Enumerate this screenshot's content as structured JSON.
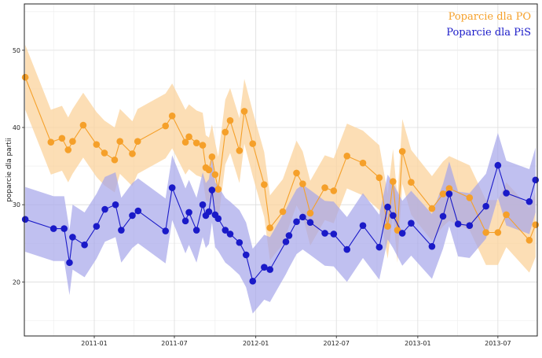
{
  "chart_data": {
    "type": "line",
    "title": "",
    "xlabel": "",
    "ylabel": "poparcie dla partii",
    "ylim": [
      13,
      56
    ],
    "xlim": [
      "2010-07-27",
      "2013-09-28"
    ],
    "y_ticks": [
      20,
      30,
      40,
      50
    ],
    "x_ticks": [
      "2011-01",
      "2011-07",
      "2012-01",
      "2012-07",
      "2013-01",
      "2013-07"
    ],
    "x_tick_dates": [
      "2011-01-01",
      "2011-07-01",
      "2012-01-01",
      "2012-07-01",
      "2013-01-01",
      "2013-07-01"
    ],
    "grid": true,
    "legend_position": "top-right",
    "bands": "shaded confidence band around each series",
    "series": [
      {
        "name": "Poparcie dla PO",
        "color": "#f5a02a",
        "band_color": "#fbd39c",
        "points": [
          [
            "2010-07-29",
            46.5
          ],
          [
            "2010-09-25",
            38.1
          ],
          [
            "2010-10-20",
            38.6
          ],
          [
            "2010-11-03",
            37.1
          ],
          [
            "2010-11-13",
            38.2
          ],
          [
            "2010-12-07",
            40.3
          ],
          [
            "2011-01-06",
            37.8
          ],
          [
            "2011-01-24",
            36.7
          ],
          [
            "2011-02-16",
            35.8
          ],
          [
            "2011-02-28",
            38.2
          ],
          [
            "2011-03-28",
            36.6
          ],
          [
            "2011-04-09",
            38.2
          ],
          [
            "2011-06-11",
            40.2
          ],
          [
            "2011-06-26",
            41.5
          ],
          [
            "2011-07-26",
            38.1
          ],
          [
            "2011-08-03",
            38.8
          ],
          [
            "2011-08-20",
            38.0
          ],
          [
            "2011-09-03",
            37.7
          ],
          [
            "2011-09-10",
            34.8
          ],
          [
            "2011-09-17",
            34.5
          ],
          [
            "2011-09-24",
            36.2
          ],
          [
            "2011-10-01",
            33.9
          ],
          [
            "2011-10-08",
            32.0
          ],
          [
            "2011-10-24",
            39.4
          ],
          [
            "2011-11-04",
            40.9
          ],
          [
            "2011-11-25",
            37.0
          ],
          [
            "2011-12-06",
            42.1
          ],
          [
            "2011-12-25",
            37.9
          ],
          [
            "2012-01-20",
            32.6
          ],
          [
            "2012-02-02",
            27.0
          ],
          [
            "2012-03-02",
            29.1
          ],
          [
            "2012-04-02",
            34.1
          ],
          [
            "2012-04-16",
            32.7
          ],
          [
            "2012-05-03",
            28.9
          ],
          [
            "2012-06-05",
            32.2
          ],
          [
            "2012-06-25",
            31.8
          ],
          [
            "2012-07-25",
            36.3
          ],
          [
            "2012-08-30",
            35.4
          ],
          [
            "2012-10-06",
            33.5
          ],
          [
            "2012-10-25",
            27.2
          ],
          [
            "2012-11-16",
            26.7
          ],
          [
            "2012-11-06",
            33.0
          ],
          [
            "2012-11-27",
            36.9
          ],
          [
            "2012-12-17",
            32.9
          ],
          [
            "2013-02-02",
            29.5
          ],
          [
            "2013-02-27",
            31.4
          ],
          [
            "2013-03-13",
            32.1
          ],
          [
            "2013-04-28",
            30.9
          ],
          [
            "2013-06-04",
            26.4
          ],
          [
            "2013-07-01",
            26.4
          ],
          [
            "2013-07-20",
            28.7
          ],
          [
            "2013-09-10",
            25.4
          ],
          [
            "2013-09-24",
            27.4
          ]
        ]
      },
      {
        "name": "Poparcie dla PiS",
        "color": "#1a1ac8",
        "band_color": "#a5a5ea",
        "points": [
          [
            "2010-07-29",
            28.1
          ],
          [
            "2010-10-01",
            26.9
          ],
          [
            "2010-10-25",
            26.9
          ],
          [
            "2010-11-06",
            22.5
          ],
          [
            "2010-11-13",
            25.8
          ],
          [
            "2010-12-10",
            24.8
          ],
          [
            "2011-01-06",
            27.2
          ],
          [
            "2011-01-25",
            29.4
          ],
          [
            "2011-02-18",
            30.0
          ],
          [
            "2011-03-03",
            26.7
          ],
          [
            "2011-03-28",
            28.6
          ],
          [
            "2011-04-10",
            29.2
          ],
          [
            "2011-06-11",
            26.6
          ],
          [
            "2011-06-26",
            32.2
          ],
          [
            "2011-07-26",
            27.9
          ],
          [
            "2011-08-03",
            29.0
          ],
          [
            "2011-08-20",
            26.7
          ],
          [
            "2011-09-03",
            30.0
          ],
          [
            "2011-09-10",
            28.6
          ],
          [
            "2011-09-17",
            29.1
          ],
          [
            "2011-09-24",
            31.9
          ],
          [
            "2011-10-01",
            28.7
          ],
          [
            "2011-10-08",
            28.2
          ],
          [
            "2011-10-24",
            26.7
          ],
          [
            "2011-11-04",
            26.2
          ],
          [
            "2011-11-25",
            25.1
          ],
          [
            "2011-12-10",
            23.5
          ],
          [
            "2011-12-25",
            20.1
          ],
          [
            "2012-01-20",
            21.9
          ],
          [
            "2012-02-02",
            21.6
          ],
          [
            "2012-03-09",
            25.2
          ],
          [
            "2012-03-16",
            26.0
          ],
          [
            "2012-04-02",
            27.8
          ],
          [
            "2012-04-16",
            28.4
          ],
          [
            "2012-05-03",
            27.7
          ],
          [
            "2012-06-05",
            26.3
          ],
          [
            "2012-06-25",
            26.2
          ],
          [
            "2012-07-25",
            24.2
          ],
          [
            "2012-08-30",
            27.3
          ],
          [
            "2012-10-06",
            24.5
          ],
          [
            "2012-10-25",
            29.7
          ],
          [
            "2012-11-06",
            28.6
          ],
          [
            "2012-11-27",
            26.3
          ],
          [
            "2012-12-17",
            27.6
          ],
          [
            "2013-02-02",
            24.6
          ],
          [
            "2013-02-27",
            28.5
          ],
          [
            "2013-03-13",
            31.4
          ],
          [
            "2013-04-02",
            27.5
          ],
          [
            "2013-04-28",
            27.3
          ],
          [
            "2013-06-04",
            29.8
          ],
          [
            "2013-07-01",
            35.1
          ],
          [
            "2013-07-20",
            31.5
          ],
          [
            "2013-09-10",
            30.4
          ],
          [
            "2013-09-24",
            33.2
          ]
        ]
      }
    ]
  }
}
